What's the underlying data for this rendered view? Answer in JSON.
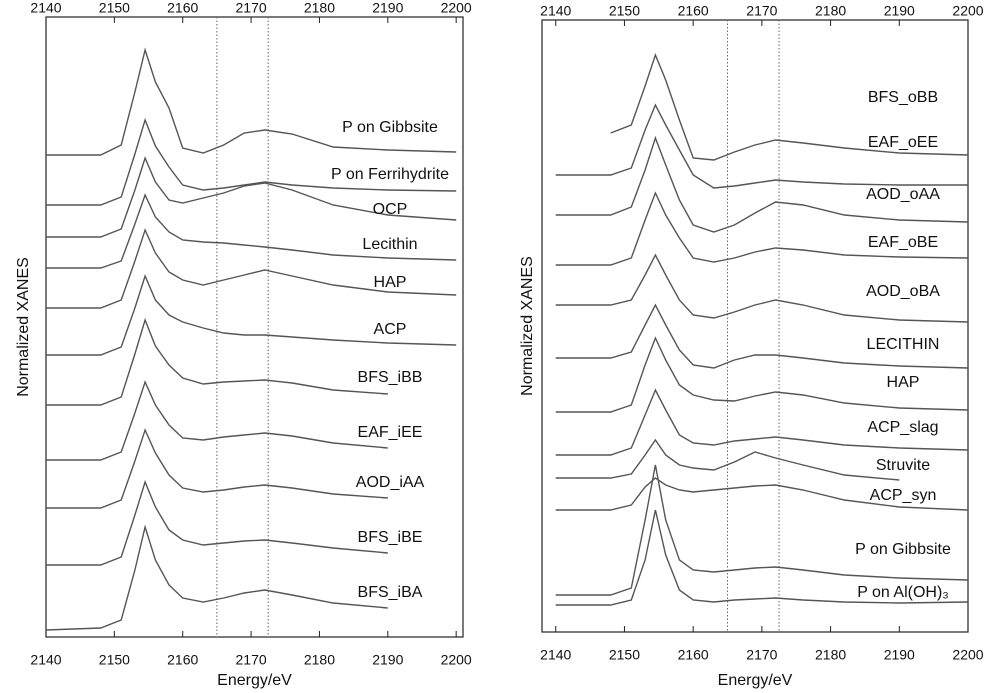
{
  "chart_data": [
    {
      "type": "line",
      "x_label": "Energy/eV",
      "y_label": "Normalized XANES",
      "color": "#555555",
      "xlim": [
        2140,
        2201
      ],
      "xticks": [
        2140,
        2150,
        2160,
        2170,
        2180,
        2190,
        2200
      ],
      "ylim": [
        0,
        620
      ],
      "reference_lines": [
        2165,
        2172.5
      ],
      "x": [
        2140,
        2148,
        2151,
        2153,
        2154.5,
        2156,
        2158,
        2160,
        2163,
        2166,
        2169,
        2172,
        2176,
        2182,
        2190,
        2200
      ],
      "series": [
        {
          "name": "P on Gibbsite",
          "values": [
            482,
            482,
            492,
            545,
            587,
            555,
            529,
            489,
            484,
            492,
            504,
            507,
            503,
            490,
            487,
            485
          ]
        },
        {
          "name": "P on Ferrihydrite",
          "values": [
            432,
            432,
            440,
            483,
            517,
            491,
            470,
            452,
            447,
            449,
            452,
            455,
            452,
            449,
            447,
            446
          ]
        },
        {
          "name": "OCP",
          "values": [
            400,
            400,
            408,
            447,
            479,
            455,
            437,
            434,
            439,
            444,
            451,
            454,
            447,
            432,
            422,
            417
          ]
        },
        {
          "name": "Lecithin",
          "values": [
            369,
            369,
            376,
            413,
            442,
            420,
            405,
            397,
            395,
            394,
            392,
            390,
            387,
            382,
            379,
            377
          ]
        },
        {
          "name": "HAP",
          "values": [
            329,
            329,
            337,
            376,
            407,
            384,
            365,
            357,
            352,
            357,
            362,
            367,
            361,
            352,
            345,
            342
          ]
        },
        {
          "name": "ACP",
          "values": [
            282,
            282,
            290,
            329,
            361,
            337,
            322,
            315,
            309,
            304,
            302,
            302,
            300,
            297,
            294,
            292
          ]
        },
        {
          "name": "BFS_iBB",
          "values": [
            232,
            232,
            240,
            283,
            317,
            291,
            272,
            259,
            253,
            255,
            256,
            257,
            254,
            247,
            243,
            null
          ]
        },
        {
          "name": "EAF_iEE",
          "values": [
            177,
            177,
            185,
            224,
            255,
            232,
            212,
            199,
            197,
            200,
            202,
            204,
            201,
            194,
            189,
            null
          ]
        },
        {
          "name": "AOD_iAA",
          "values": [
            129,
            129,
            137,
            176,
            207,
            184,
            162,
            149,
            145,
            147,
            150,
            152,
            149,
            143,
            139,
            null
          ]
        },
        {
          "name": "BFS_iBE",
          "values": [
            72,
            72,
            80,
            122,
            155,
            130,
            107,
            97,
            92,
            94,
            96,
            97,
            94,
            89,
            84,
            null
          ]
        },
        {
          "name": "BFS_iBA",
          "values": [
            7,
            9,
            17,
            67,
            110,
            77,
            52,
            39,
            35,
            39,
            44,
            47,
            42,
            34,
            29,
            null
          ]
        }
      ]
    },
    {
      "type": "line",
      "x_label": "Energy/eV",
      "y_label": "Normalized XANES",
      "color": "#555555",
      "xlim": [
        2138,
        2200
      ],
      "xticks": [
        2140,
        2150,
        2160,
        2170,
        2180,
        2190,
        2200
      ],
      "ylim": [
        0,
        612
      ],
      "reference_lines": [
        2165,
        2172.5
      ],
      "x": [
        2140,
        2148,
        2151,
        2153,
        2154.5,
        2156,
        2158,
        2160,
        2163,
        2166,
        2169,
        2172,
        2176,
        2182,
        2190,
        2200
      ],
      "series": [
        {
          "name": "BFS_oBB",
          "values": [
            null,
            499,
            507,
            546,
            577,
            552,
            512,
            474,
            472,
            480,
            487,
            492,
            489,
            484,
            479,
            477
          ]
        },
        {
          "name": "EAF_oEE",
          "values": [
            457,
            457,
            464,
            502,
            527,
            507,
            482,
            457,
            444,
            446,
            449,
            452,
            450,
            448,
            447,
            447
          ]
        },
        {
          "name": "AOD_oAA",
          "values": [
            417,
            417,
            425,
            462,
            494,
            467,
            432,
            407,
            400,
            407,
            419,
            430,
            427,
            417,
            412,
            410
          ]
        },
        {
          "name": "EAF_oBE",
          "values": [
            367,
            367,
            374,
            412,
            439,
            417,
            394,
            374,
            370,
            374,
            380,
            384,
            382,
            377,
            375,
            374
          ]
        },
        {
          "name": "AOD_oBA",
          "values": [
            327,
            327,
            332,
            357,
            377,
            357,
            332,
            317,
            314,
            320,
            327,
            332,
            327,
            317,
            312,
            310
          ]
        },
        {
          "name": "LECITHIN",
          "values": [
            274,
            274,
            280,
            307,
            327,
            307,
            282,
            267,
            264,
            272,
            277,
            277,
            274,
            269,
            266,
            264
          ]
        },
        {
          "name": "HAP",
          "values": [
            220,
            220,
            227,
            267,
            294,
            272,
            247,
            237,
            232,
            231,
            236,
            240,
            237,
            229,
            224,
            222
          ]
        },
        {
          "name": "ACP_slag",
          "values": [
            177,
            177,
            184,
            217,
            242,
            222,
            197,
            189,
            187,
            191,
            193,
            195,
            192,
            187,
            184,
            182
          ]
        },
        {
          "name": "Struvite",
          "values": [
            154,
            154,
            158,
            177,
            192,
            177,
            167,
            164,
            162,
            170,
            180,
            174,
            167,
            157,
            152,
            null
          ]
        },
        {
          "name": "ACP_syn",
          "values": [
            122,
            122,
            127,
            145,
            154,
            147,
            142,
            140,
            142,
            144,
            146,
            147,
            142,
            132,
            125,
            122
          ]
        },
        {
          "name": "P on Gibbsite",
          "values": [
            37,
            37,
            44,
            112,
            167,
            112,
            72,
            62,
            60,
            62,
            64,
            65,
            62,
            57,
            54,
            52
          ]
        },
        {
          "name": "P on Al(OH)₃",
          "values": [
            27,
            27,
            32,
            72,
            122,
            77,
            42,
            32,
            30,
            32,
            33,
            34,
            32,
            30,
            29,
            30
          ]
        }
      ]
    }
  ]
}
